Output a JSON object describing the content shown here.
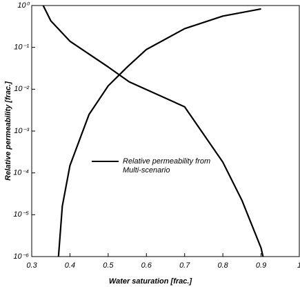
{
  "chart_data": {
    "type": "line",
    "xlabel": "Water saturation [frac.]",
    "ylabel": "Relative permeability [frac.]",
    "xlim": [
      0.3,
      1
    ],
    "xticks": [
      0.3,
      0.4,
      0.5,
      0.6,
      0.7,
      0.8,
      0.9,
      1
    ],
    "ylim": [
      1e-06,
      1
    ],
    "ylog": true,
    "yticks": [
      {
        "value": 1,
        "label": "10⁰"
      },
      {
        "value": 0.1,
        "label": "10⁻¹"
      },
      {
        "value": 0.01,
        "label": "10⁻²"
      },
      {
        "value": 0.001,
        "label": "10⁻³"
      },
      {
        "value": 0.0001,
        "label": "10⁻⁴"
      },
      {
        "value": 1e-05,
        "label": "10⁻⁵"
      },
      {
        "value": 1e-06,
        "label": "10⁻⁶"
      }
    ],
    "series": [
      {
        "name": "Relative permeability from Multi-scenario",
        "color": "#000000",
        "x": [
          0.37,
          0.38,
          0.4,
          0.45,
          0.5,
          0.55,
          0.6,
          0.7,
          0.8,
          0.9
        ],
        "values": [
          1e-06,
          1.6e-05,
          0.00015,
          0.0025,
          0.012,
          0.034,
          0.089,
          0.28,
          0.56,
          0.83
        ]
      },
      {
        "color": "#000000",
        "x": [
          0.33,
          0.35,
          0.4,
          0.5,
          0.555,
          0.7,
          0.8,
          0.85,
          0.9,
          0.905
        ],
        "values": [
          1,
          0.43,
          0.14,
          0.034,
          0.015,
          0.0038,
          0.00018,
          2.2e-05,
          1.6e-06,
          1e-06
        ]
      }
    ]
  }
}
